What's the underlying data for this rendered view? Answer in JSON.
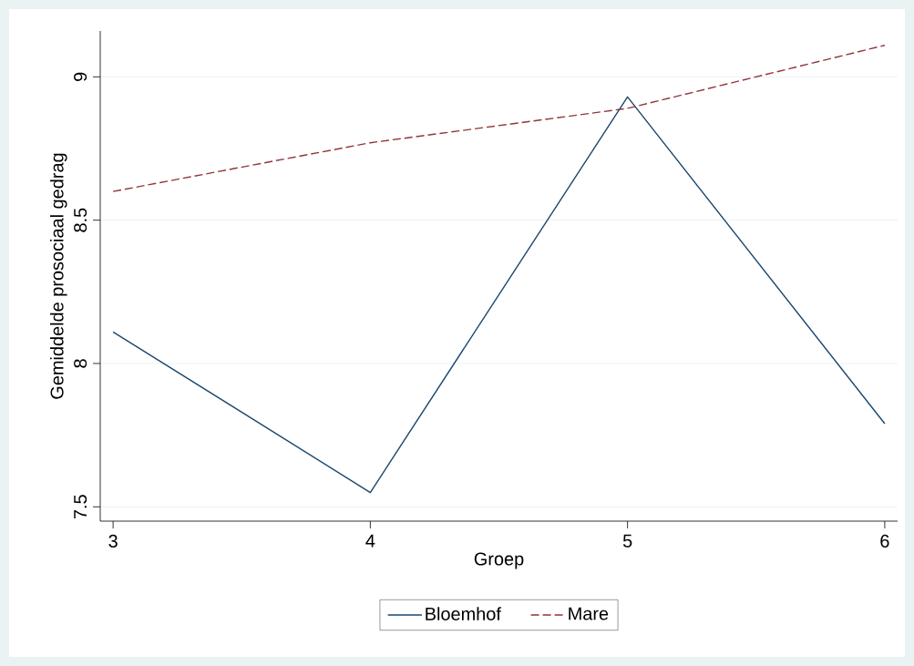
{
  "chart_data": {
    "type": "line",
    "xlabel": "Groep",
    "ylabel": "Gemiddelde prosociaal gedrag",
    "x": [
      3,
      4,
      5,
      6
    ],
    "series": [
      {
        "name": "Bloemhof",
        "color": "#1a476f",
        "values": [
          8.11,
          7.55,
          8.93,
          7.79
        ],
        "line_style": "solid"
      },
      {
        "name": "Mare",
        "color": "#90353b",
        "values": [
          8.6,
          8.77,
          8.89,
          9.11
        ],
        "line_style": "dashed"
      }
    ],
    "xlim": [
      2.95,
      6.05
    ],
    "ylim": [
      7.45,
      9.16
    ],
    "xticks": [
      3,
      4,
      5,
      6
    ],
    "yticks": [
      7.5,
      8,
      8.5,
      9
    ],
    "grid": "y",
    "legend": "bottom",
    "marker": "none"
  }
}
